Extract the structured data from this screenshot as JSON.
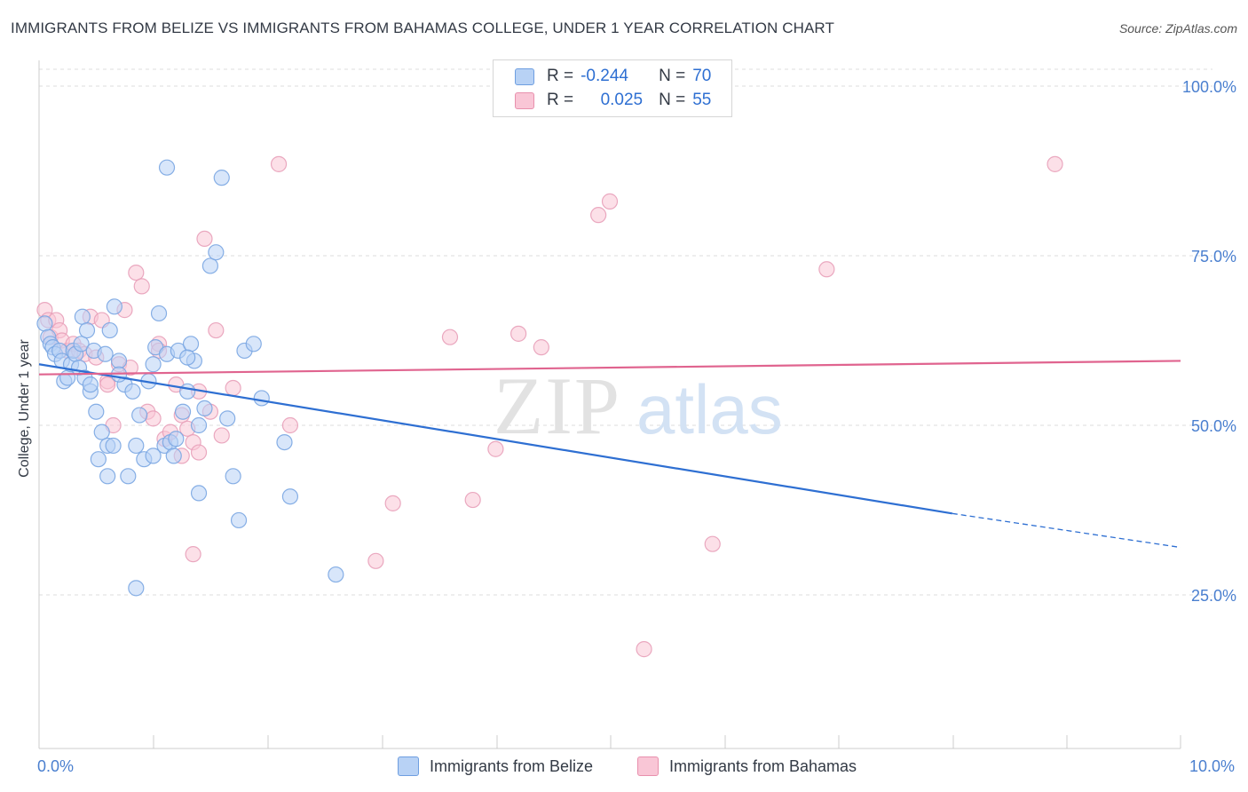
{
  "title": "IMMIGRANTS FROM BELIZE VS IMMIGRANTS FROM BAHAMAS COLLEGE, UNDER 1 YEAR CORRELATION CHART",
  "source": "Source: ZipAtlas.com",
  "legend": {
    "blue": {
      "r_label": "R =",
      "r_value": "-0.244",
      "n_label": "N =",
      "n_value": "70"
    },
    "pink": {
      "r_label": "R =",
      "r_value": "0.025",
      "n_label": "N =",
      "n_value": "55"
    }
  },
  "bottom_legend": {
    "blue": "Immigrants from Belize",
    "pink": "Immigrants from Bahamas"
  },
  "watermark": {
    "zip": "ZIP",
    "atlas": "atlas"
  },
  "colors": {
    "blue": "#2e6fd2",
    "blue_fill": "#b8d2f5",
    "pink": "#e0648f",
    "pink_fill": "#f9c6d6",
    "axis_label": "#4a7fcf"
  },
  "chart_data": {
    "type": "scatter",
    "title": "IMMIGRANTS FROM BELIZE VS IMMIGRANTS FROM BAHAMAS COLLEGE, UNDER 1 YEAR CORRELATION CHART",
    "xlabel": "",
    "ylabel": "College, Under 1 year",
    "xlim": [
      0,
      10
    ],
    "ylim": [
      2,
      104
    ],
    "x_tick_labels": {
      "min": "0.0%",
      "max": "10.0%"
    },
    "y_ticks": [
      {
        "value": 100,
        "label": "100.0%"
      },
      {
        "value": 75,
        "label": "75.0%"
      },
      {
        "value": 50,
        "label": "50.0%"
      },
      {
        "value": 25,
        "label": "25.0%"
      }
    ],
    "series": [
      {
        "name": "Immigrants from Belize",
        "color": "blue",
        "R": -0.244,
        "N": 70,
        "trend": {
          "x0": 0,
          "y0": 59,
          "x1": 8.0,
          "y1": 37,
          "dash_x1": 10.0,
          "dash_y1": 32
        },
        "points": [
          [
            0.05,
            65
          ],
          [
            0.08,
            63
          ],
          [
            0.1,
            62
          ],
          [
            0.12,
            61.5
          ],
          [
            0.14,
            60.5
          ],
          [
            0.18,
            61
          ],
          [
            0.2,
            59.5
          ],
          [
            0.22,
            56.5
          ],
          [
            0.25,
            57
          ],
          [
            0.28,
            59
          ],
          [
            0.3,
            61
          ],
          [
            0.32,
            60.5
          ],
          [
            0.35,
            58.5
          ],
          [
            0.37,
            62
          ],
          [
            0.4,
            57
          ],
          [
            0.45,
            55
          ],
          [
            0.5,
            52
          ],
          [
            0.55,
            49
          ],
          [
            0.6,
            47
          ],
          [
            0.65,
            47
          ],
          [
            0.38,
            66
          ],
          [
            0.42,
            64
          ],
          [
            0.45,
            56
          ],
          [
            0.48,
            61
          ],
          [
            0.52,
            45
          ],
          [
            0.58,
            60.5
          ],
          [
            0.62,
            64
          ],
          [
            0.66,
            67.5
          ],
          [
            0.7,
            59.5
          ],
          [
            0.75,
            56
          ],
          [
            0.78,
            42.5
          ],
          [
            0.82,
            55
          ],
          [
            0.85,
            47
          ],
          [
            0.88,
            51.5
          ],
          [
            0.92,
            45
          ],
          [
            0.96,
            56.5
          ],
          [
            1.0,
            59
          ],
          [
            1.02,
            61.5
          ],
          [
            1.05,
            66.5
          ],
          [
            1.1,
            47
          ],
          [
            1.12,
            60.5
          ],
          [
            1.15,
            47.5
          ],
          [
            1.18,
            45.5
          ],
          [
            1.22,
            61
          ],
          [
            1.26,
            52
          ],
          [
            1.3,
            55
          ],
          [
            1.33,
            62
          ],
          [
            1.36,
            59.5
          ],
          [
            1.4,
            50
          ],
          [
            1.45,
            52.5
          ],
          [
            1.5,
            73.5
          ],
          [
            1.55,
            75.5
          ],
          [
            1.6,
            86.5
          ],
          [
            1.65,
            51
          ],
          [
            1.7,
            42.5
          ],
          [
            1.75,
            36
          ],
          [
            1.8,
            61
          ],
          [
            1.88,
            62
          ],
          [
            1.95,
            54
          ],
          [
            0.7,
            57.5
          ],
          [
            0.6,
            42.5
          ],
          [
            0.85,
            26
          ],
          [
            1.12,
            88
          ],
          [
            1.2,
            48
          ],
          [
            1.3,
            60
          ],
          [
            1.4,
            40
          ],
          [
            1.0,
            45.5
          ],
          [
            2.15,
            47.5
          ],
          [
            2.2,
            39.5
          ],
          [
            2.6,
            28
          ]
        ]
      },
      {
        "name": "Immigrants from Bahamas",
        "color": "pink",
        "R": 0.025,
        "N": 55,
        "trend": {
          "x0": 0,
          "y0": 57.5,
          "x1": 10.0,
          "y1": 59.5
        },
        "points": [
          [
            0.05,
            67
          ],
          [
            0.08,
            65.5
          ],
          [
            0.1,
            63
          ],
          [
            0.15,
            65.5
          ],
          [
            0.18,
            64
          ],
          [
            0.2,
            62.5
          ],
          [
            0.25,
            61
          ],
          [
            0.3,
            62
          ],
          [
            0.35,
            61
          ],
          [
            0.4,
            60.5
          ],
          [
            0.45,
            66
          ],
          [
            0.5,
            60
          ],
          [
            0.55,
            65.5
          ],
          [
            0.6,
            56.5
          ],
          [
            0.65,
            50
          ],
          [
            0.7,
            59
          ],
          [
            0.75,
            67
          ],
          [
            0.8,
            58.5
          ],
          [
            0.85,
            72.5
          ],
          [
            0.9,
            70.5
          ],
          [
            0.95,
            52
          ],
          [
            1.0,
            51
          ],
          [
            1.05,
            62
          ],
          [
            1.1,
            48
          ],
          [
            1.15,
            49
          ],
          [
            1.2,
            56
          ],
          [
            1.25,
            51.5
          ],
          [
            1.3,
            49.5
          ],
          [
            1.35,
            47.5
          ],
          [
            1.4,
            46
          ],
          [
            1.45,
            77.5
          ],
          [
            1.5,
            52
          ],
          [
            1.55,
            64
          ],
          [
            1.6,
            48.5
          ],
          [
            1.7,
            55.5
          ],
          [
            0.6,
            56
          ],
          [
            1.05,
            61
          ],
          [
            1.25,
            45.5
          ],
          [
            1.4,
            55
          ],
          [
            1.35,
            31
          ],
          [
            2.1,
            88.5
          ],
          [
            2.2,
            50
          ],
          [
            3.1,
            38.5
          ],
          [
            2.95,
            30
          ],
          [
            3.6,
            63
          ],
          [
            3.8,
            39
          ],
          [
            4.0,
            46.5
          ],
          [
            4.2,
            63.5
          ],
          [
            4.4,
            61.5
          ],
          [
            4.9,
            81
          ],
          [
            5.0,
            83
          ],
          [
            5.3,
            17
          ],
          [
            5.9,
            32.5
          ],
          [
            6.9,
            73
          ],
          [
            8.9,
            88.5
          ]
        ]
      }
    ]
  }
}
